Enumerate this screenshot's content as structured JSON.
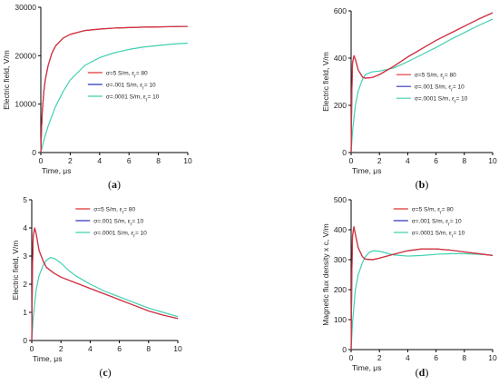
{
  "chart_data": [
    {
      "type": "line",
      "panel_label": "(a)",
      "panel_letter": "a",
      "xlabel": "Time, μs",
      "ylabel": "Electric field, V/m",
      "xlim": [
        0,
        10
      ],
      "ylim": [
        0,
        30000
      ],
      "xticks": [
        "0",
        "2",
        "4",
        "6",
        "8",
        "10"
      ],
      "yticks": [
        "0",
        "10000",
        "20000",
        "30000"
      ],
      "legend_position": "center-right",
      "series": [
        {
          "name": "σ=5 S/m, εr= 80",
          "color": "#e03030",
          "x": [
            0,
            0.05,
            0.1,
            0.2,
            0.3,
            0.5,
            0.75,
            1,
            1.5,
            2,
            3,
            4,
            5,
            6,
            7,
            8,
            9,
            10
          ],
          "y": [
            0,
            5000,
            8500,
            12500,
            15000,
            18000,
            20500,
            22000,
            23600,
            24400,
            25200,
            25500,
            25700,
            25800,
            25900,
            25950,
            26000,
            26050
          ]
        },
        {
          "name": "σ=.001 S/m, εr= 10",
          "color": "#3333bb",
          "x": [
            0,
            0.05,
            0.1,
            0.2,
            0.3,
            0.5,
            0.75,
            1,
            1.5,
            2,
            3,
            4,
            5,
            6,
            7,
            8,
            9,
            10
          ],
          "y": [
            0,
            5000,
            8500,
            12500,
            15000,
            18000,
            20500,
            22000,
            23600,
            24400,
            25200,
            25500,
            25700,
            25800,
            25900,
            25950,
            26000,
            26050
          ]
        },
        {
          "name": "σ=.0001 S/m, εr= 10",
          "color": "#40d0b0",
          "x": [
            0,
            0.2,
            0.5,
            1,
            1.5,
            2,
            3,
            4,
            5,
            6,
            7,
            8,
            9,
            10
          ],
          "y": [
            0,
            2500,
            5500,
            9500,
            12500,
            15000,
            18000,
            19600,
            20600,
            21300,
            21800,
            22100,
            22400,
            22600
          ]
        }
      ]
    },
    {
      "type": "line",
      "panel_label": "(b)",
      "panel_letter": "b",
      "xlabel": "Time, μs",
      "ylabel": "Electric field, V/m",
      "xlim": [
        0,
        10
      ],
      "ylim": [
        0,
        600
      ],
      "xticks": [
        "0",
        "2",
        "4",
        "6",
        "8",
        "10"
      ],
      "yticks": [
        "0",
        "200",
        "400",
        "600"
      ],
      "legend_position": "center-right",
      "series": [
        {
          "name": "σ=5 S/m, εr= 80",
          "color": "#e03030",
          "x": [
            0,
            0.05,
            0.1,
            0.2,
            0.3,
            0.5,
            0.8,
            1,
            1.5,
            2,
            3,
            4,
            5,
            6,
            7,
            8,
            9,
            10
          ],
          "y": [
            0,
            250,
            380,
            410,
            395,
            350,
            320,
            315,
            318,
            330,
            365,
            405,
            440,
            475,
            505,
            535,
            565,
            592
          ]
        },
        {
          "name": "σ=.001 S/m, εr= 10",
          "color": "#3333bb",
          "x": [
            0,
            0.05,
            0.1,
            0.2,
            0.3,
            0.5,
            0.8,
            1,
            1.5,
            2,
            3,
            4,
            5,
            6,
            7,
            8,
            9,
            10
          ],
          "y": [
            0,
            250,
            380,
            410,
            395,
            350,
            320,
            315,
            318,
            330,
            365,
            405,
            440,
            475,
            505,
            535,
            565,
            592
          ]
        },
        {
          "name": "σ=.0001 S/m, εr= 10",
          "color": "#40d0b0",
          "x": [
            0,
            0.1,
            0.3,
            0.5,
            0.8,
            1,
            1.5,
            2,
            3,
            4,
            5,
            6,
            7,
            8,
            9,
            10
          ],
          "y": [
            0,
            90,
            200,
            260,
            310,
            330,
            342,
            345,
            358,
            385,
            415,
            445,
            478,
            508,
            538,
            565
          ]
        }
      ]
    },
    {
      "type": "line",
      "panel_label": "(c)",
      "panel_letter": "c",
      "xlabel": "Time, μs",
      "ylabel": "Electric field, V/m",
      "xlim": [
        0,
        10
      ],
      "ylim": [
        0,
        5
      ],
      "xticks": [
        "0",
        "2",
        "4",
        "6",
        "8",
        "10"
      ],
      "yticks": [
        "0",
        "1",
        "2",
        "3",
        "4",
        "5"
      ],
      "legend_position": "top-right",
      "series": [
        {
          "name": "σ=5 S/m, εr= 80",
          "color": "#e03030",
          "x": [
            0,
            0.05,
            0.1,
            0.2,
            0.3,
            0.5,
            0.8,
            1,
            1.5,
            2,
            3,
            4,
            5,
            6,
            7,
            8,
            9,
            10
          ],
          "y": [
            0,
            2.6,
            3.7,
            4.0,
            3.8,
            3.2,
            2.8,
            2.6,
            2.4,
            2.25,
            2.05,
            1.85,
            1.65,
            1.45,
            1.25,
            1.05,
            0.9,
            0.78
          ]
        },
        {
          "name": "σ=.001 S/m, εr= 10",
          "color": "#3333bb",
          "x": [
            0,
            0.05,
            0.1,
            0.2,
            0.3,
            0.5,
            0.8,
            1,
            1.5,
            2,
            3,
            4,
            5,
            6,
            7,
            8,
            9,
            10
          ],
          "y": [
            0,
            2.6,
            3.7,
            4.0,
            3.8,
            3.2,
            2.8,
            2.6,
            2.4,
            2.25,
            2.05,
            1.85,
            1.65,
            1.45,
            1.25,
            1.05,
            0.9,
            0.78
          ]
        },
        {
          "name": "σ=.0001 S/m, εr= 10",
          "color": "#40d0b0",
          "x": [
            0,
            0.1,
            0.3,
            0.5,
            0.8,
            1,
            1.3,
            1.6,
            2,
            2.5,
            3,
            4,
            5,
            6,
            7,
            8,
            9,
            10
          ],
          "y": [
            0,
            0.8,
            1.8,
            2.3,
            2.7,
            2.85,
            2.95,
            2.9,
            2.75,
            2.5,
            2.3,
            2.0,
            1.75,
            1.55,
            1.35,
            1.15,
            1.0,
            0.85
          ]
        }
      ]
    },
    {
      "type": "line",
      "panel_label": "(d)",
      "panel_letter": "d",
      "xlabel": "Time, μs",
      "ylabel": "Magnetic flux density x c, V/m",
      "xlim": [
        0,
        10
      ],
      "ylim": [
        0,
        500
      ],
      "xticks": [
        "0",
        "2",
        "4",
        "6",
        "8",
        "10"
      ],
      "yticks": [
        "0",
        "100",
        "200",
        "300",
        "400",
        "500"
      ],
      "legend_position": "top-right",
      "series": [
        {
          "name": "σ=5 S/m, εr= 80",
          "color": "#e03030",
          "x": [
            0,
            0.05,
            0.1,
            0.2,
            0.3,
            0.5,
            0.8,
            1,
            1.5,
            2,
            3,
            4,
            5,
            6,
            7,
            8,
            9,
            10
          ],
          "y": [
            0,
            250,
            380,
            410,
            385,
            340,
            310,
            302,
            300,
            305,
            318,
            330,
            336,
            336,
            332,
            326,
            320,
            314
          ]
        },
        {
          "name": "σ=.001 S/m, εr= 10",
          "color": "#3333bb",
          "x": [
            0,
            0.05,
            0.1,
            0.2,
            0.3,
            0.5,
            0.8,
            1,
            1.5,
            2,
            3,
            4,
            5,
            6,
            7,
            8,
            9,
            10
          ],
          "y": [
            0,
            250,
            380,
            410,
            385,
            340,
            310,
            302,
            300,
            305,
            318,
            330,
            336,
            336,
            332,
            326,
            320,
            314
          ]
        },
        {
          "name": "σ=.0001 S/m, εr= 10",
          "color": "#40d0b0",
          "x": [
            0,
            0.1,
            0.3,
            0.5,
            0.8,
            1,
            1.3,
            1.6,
            2,
            2.5,
            3,
            4,
            5,
            6,
            7,
            8,
            9,
            10
          ],
          "y": [
            0,
            90,
            200,
            250,
            290,
            310,
            325,
            330,
            328,
            322,
            316,
            312,
            314,
            318,
            320,
            320,
            318,
            315
          ]
        }
      ]
    }
  ]
}
